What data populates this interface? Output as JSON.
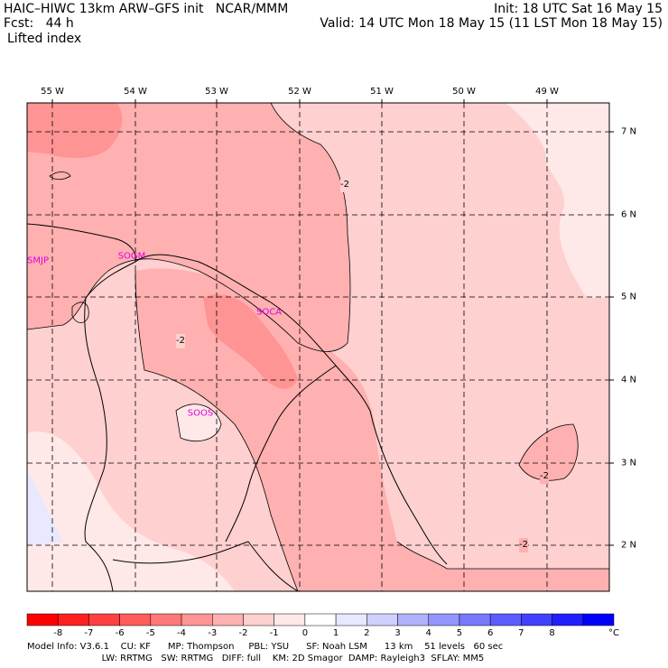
{
  "header": {
    "line1_left": "HAIC–HIWC 13km ARW–GFS init   NCAR/MMM",
    "line1_right": "Init: 18 UTC Sat 16 May 15",
    "line2_left": "Fcst:   44 h",
    "line2_right": "Valid: 14 UTC Mon 18 May 15 (11 LST Mon 18 May 15)",
    "field": "Lifted index"
  },
  "map": {
    "lon_labels": [
      "55 W",
      "54 W",
      "53 W",
      "52 W",
      "51 W",
      "50 W",
      "49 W"
    ],
    "lat_labels": [
      "7 N",
      "6 N",
      "5 N",
      "4 N",
      "3 N",
      "2 N"
    ],
    "stations": [
      "SMJP",
      "SOGM",
      "SOCA",
      "SOOS"
    ],
    "contour_labels": [
      "-2",
      "-2",
      "-2",
      "-2"
    ]
  },
  "colorbar": {
    "labels": [
      "-8",
      "-7",
      "-6",
      "-5",
      "-4",
      "-3",
      "-2",
      "-1",
      "0",
      "1",
      "2",
      "3",
      "4",
      "5",
      "6",
      "7",
      "8"
    ],
    "unit": "°C",
    "colors": [
      "#ff0000",
      "#ff2020",
      "#ff4040",
      "#ff5c5c",
      "#ff7878",
      "#ff9494",
      "#ffb0b0",
      "#ffd0d0",
      "#ffe8e8",
      "#ffffff",
      "#e8e8ff",
      "#d0d0ff",
      "#b0b0ff",
      "#9494ff",
      "#7878ff",
      "#5c5cff",
      "#4040ff",
      "#2020ff",
      "#0000ff"
    ]
  },
  "footer": {
    "line1": "Model Info: V3.6.1    CU: KF      MP: Thompson     PBL: YSU      SF: Noah LSM      13 km    51 levels   60 sec",
    "line2": "                          LW: RRTMG   SW: RRTMG   DIFF: full    KM: 2D Smagor  DAMP: Rayleigh3  SFLAY: MM5"
  }
}
